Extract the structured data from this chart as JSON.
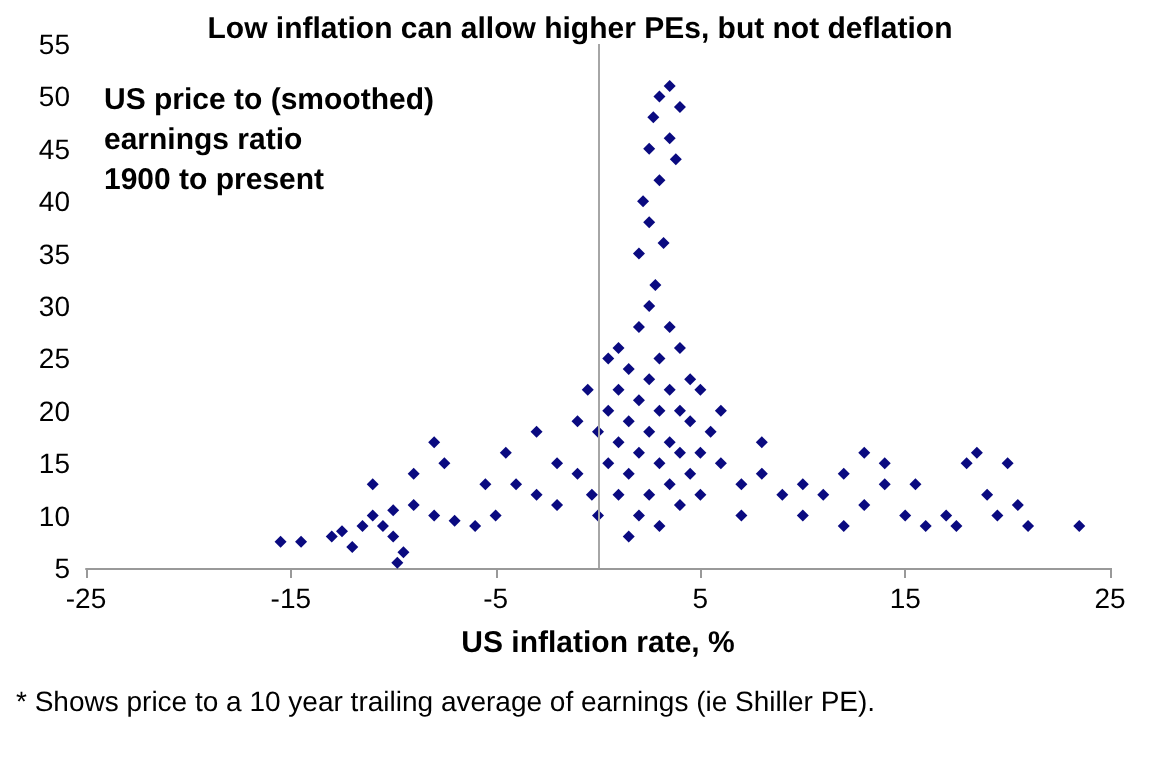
{
  "chart_data": {
    "type": "scatter",
    "title": "Low inflation can allow higher PEs, but not deflation",
    "xlabel": "US inflation rate, %",
    "annotations": [
      "US price to (smoothed)\nearnings ratio\n1900 to present",
      "* Shows price to a 10 year trailing average of earnings (ie Shiller PE)."
    ],
    "xlim": [
      -25,
      25
    ],
    "xticks": [
      -25,
      -15,
      -5,
      5,
      15,
      25
    ],
    "ylim": [
      5,
      55
    ],
    "yticks": [
      5,
      10,
      15,
      20,
      25,
      30,
      35,
      40,
      45,
      50,
      55
    ],
    "grid": false,
    "marker": "diamond",
    "ref_lines": [
      {
        "axis": "x",
        "value": 0,
        "color": "#a6a6a6"
      }
    ],
    "series": [
      {
        "color": "#0a0a80",
        "x": [
          -15.5,
          -14.5,
          -13,
          -12.5,
          -11.5,
          -12,
          -11,
          -10,
          -10,
          -9.8,
          -9.5,
          -10.5,
          -11,
          -9,
          -8,
          -7.5,
          -9,
          -8,
          -7,
          -6,
          -5,
          -5.5,
          -4,
          -4.5,
          -3,
          -2,
          -3,
          -1,
          -2,
          -1,
          2,
          2.2,
          2.5,
          2.7,
          3,
          3.5,
          4,
          3.5,
          3,
          2.5,
          3.8,
          2.8,
          3.2,
          5,
          5.5,
          6,
          7,
          8,
          9,
          10,
          11,
          12,
          13,
          14,
          15,
          15.5,
          16,
          17,
          17.5,
          18,
          18.5,
          19,
          19.5,
          20,
          20.5,
          21,
          23.5,
          14,
          13,
          8,
          6,
          7,
          10,
          12,
          0,
          0.5,
          0.5,
          1,
          1,
          1,
          1,
          1.5,
          1.5,
          1.5,
          1.5,
          2,
          2,
          2,
          2,
          2.5,
          2.5,
          2.5,
          2.5,
          3,
          3,
          3,
          3,
          3.5,
          3.5,
          3.5,
          3.5,
          4,
          4,
          4,
          4,
          4.5,
          4.5,
          4.5,
          5,
          5,
          0.5,
          0,
          -0.5,
          -0.3
        ],
        "values": [
          7.5,
          7.5,
          8,
          8.5,
          9,
          7,
          10,
          10.5,
          8,
          5.5,
          6.5,
          9,
          13,
          14,
          17,
          15,
          11,
          10,
          9.5,
          9,
          10,
          13,
          13,
          16,
          18,
          15,
          12,
          14,
          11,
          19,
          35,
          40,
          45,
          48,
          50,
          51,
          49,
          46,
          42,
          38,
          44,
          32,
          36,
          22,
          18,
          15,
          13,
          14,
          12,
          13,
          12,
          14,
          11,
          13,
          10,
          13,
          9,
          10,
          9,
          15,
          16,
          12,
          10,
          15,
          11,
          9,
          9,
          15,
          16,
          17,
          20,
          10,
          10,
          9,
          10,
          15,
          20,
          12,
          17,
          22,
          26,
          8,
          14,
          19,
          24,
          10,
          16,
          21,
          28,
          12,
          18,
          23,
          30,
          9,
          15,
          20,
          25,
          13,
          17,
          22,
          28,
          11,
          16,
          20,
          26,
          14,
          19,
          23,
          12,
          16,
          25,
          18,
          22,
          12
        ]
      }
    ]
  }
}
